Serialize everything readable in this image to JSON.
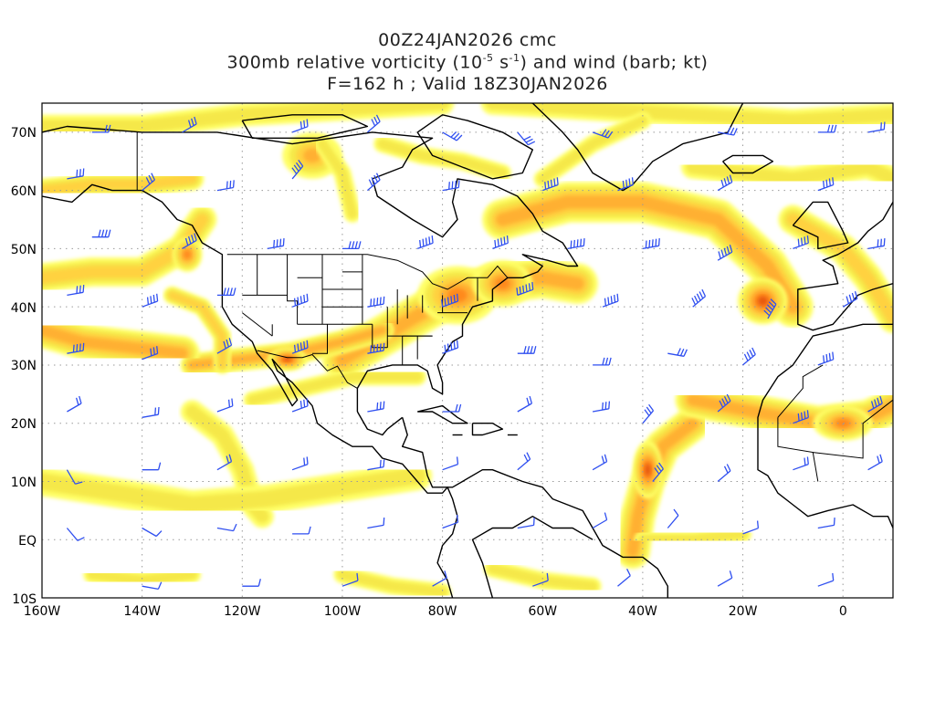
{
  "title": {
    "line1": "00Z24JAN2026 cmc",
    "line2_a": "300mb relative vorticity (10",
    "line2_exp1": "-5",
    "line2_b": " s",
    "line2_exp2": "-1",
    "line2_c": ") and wind (barb; kt)",
    "line3": "F=162 h ; Valid 18Z30JAN2026"
  },
  "map": {
    "projection": "cylindrical equidistant",
    "lon_range": [
      -160,
      10
    ],
    "lat_range": [
      -10,
      75
    ],
    "lat_labels": [
      "70N",
      "60N",
      "50N",
      "40N",
      "30N",
      "20N",
      "10N",
      "EQ",
      "10S"
    ],
    "lon_labels": [
      "160W",
      "140W",
      "120W",
      "100W",
      "80W",
      "60W",
      "40W",
      "20W",
      "0"
    ],
    "gridlines": "dotted",
    "vorticity_colors": [
      "#ffff66",
      "#f5e84a",
      "#ffd23f",
      "#ffb030",
      "#ff8a1e",
      "#e85a10",
      "#c83a08"
    ],
    "barb_color": "#2f4ff0",
    "coastline_color": "#000000"
  }
}
